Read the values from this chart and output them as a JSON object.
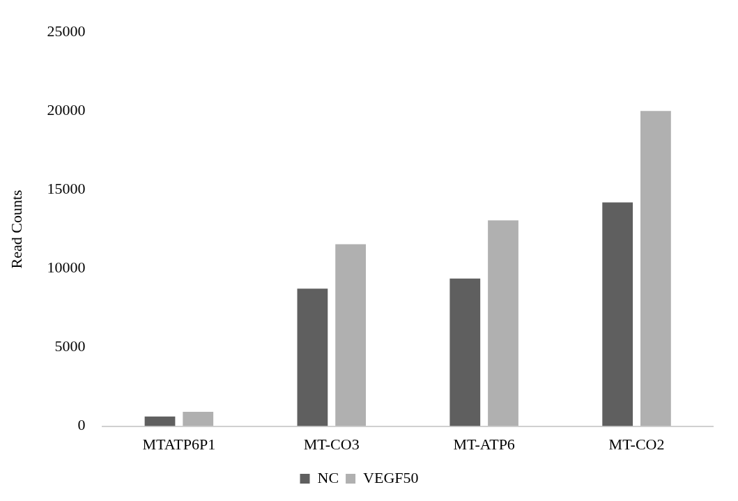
{
  "chart_data": {
    "type": "bar",
    "ylabel": "Read Counts",
    "categories": [
      "MTATP6P1",
      "MT-CO3",
      "MT-ATP6",
      "MT-CO2"
    ],
    "series": [
      {
        "name": "NC",
        "color": "#5f5f5f",
        "values": [
          610,
          8730,
          9370,
          14200
        ]
      },
      {
        "name": "VEGF50",
        "color": "#b0b0b0",
        "values": [
          910,
          11540,
          13060,
          20000
        ]
      }
    ],
    "ylim": [
      0,
      25000
    ],
    "yticks": [
      0,
      5000,
      10000,
      15000,
      20000,
      25000
    ],
    "grid": false,
    "legend": "bottom"
  }
}
